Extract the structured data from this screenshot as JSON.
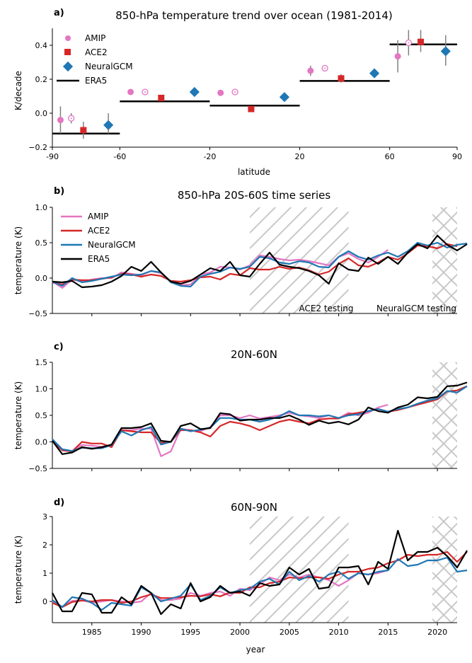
{
  "colors": {
    "amip": "#e377c2",
    "ace2": "#d62728",
    "neuralgcm": "#1f77b4",
    "era5": "#000000",
    "errorbar": "#808080",
    "hatch": "#c8c8c8"
  },
  "chart_data": [
    {
      "type": "scatter",
      "panel_label": "a)",
      "title": "850-hPa temperature trend over ocean (1981-2014)",
      "xlabel": "latitude",
      "ylabel": "K/decade",
      "xlim": [
        -90,
        90
      ],
      "ylim": [
        -0.2,
        0.5
      ],
      "xticks": [
        -90,
        -60,
        -20,
        20,
        60,
        90
      ],
      "yticks": [
        -0.2,
        0.0,
        0.2,
        0.4
      ],
      "ytick_labels": [
        "−0.2",
        "0.0",
        "0.2",
        "0.4"
      ],
      "xtick_labels": [
        "-90",
        "-60",
        "-20",
        "20",
        "60",
        "90"
      ],
      "legend": [
        "AMIP",
        "ACE2",
        "NeuralGCM",
        "ERA5"
      ],
      "legend_loc": "upper-left",
      "bands": [
        {
          "lat": [
            -90,
            -60
          ],
          "era5": -0.12,
          "amip": -0.04,
          "amip_err": [
            -0.12,
            0.04
          ],
          "amip_open": -0.03,
          "amip_open_err": [
            -0.06,
            0.0
          ],
          "ace2": -0.1,
          "ace2_err": [
            -0.15,
            -0.05
          ],
          "neuralgcm": -0.07,
          "neuralgcm_err": [
            -0.12,
            0.0
          ]
        },
        {
          "lat": [
            -60,
            -20
          ],
          "era5": 0.07,
          "amip": 0.125,
          "amip_err": null,
          "amip_open": 0.125,
          "amip_open_err": null,
          "ace2": 0.09,
          "ace2_err": null,
          "neuralgcm": 0.125,
          "neuralgcm_err": null
        },
        {
          "lat": [
            -20,
            20
          ],
          "era5": 0.045,
          "amip": 0.12,
          "amip_err": null,
          "amip_open": 0.125,
          "amip_open_err": null,
          "ace2": 0.025,
          "ace2_err": null,
          "neuralgcm": 0.095,
          "neuralgcm_err": null
        },
        {
          "lat": [
            20,
            60
          ],
          "era5": 0.19,
          "amip": 0.25,
          "amip_err": [
            0.22,
            0.28
          ],
          "amip_open": 0.265,
          "amip_open_err": [
            0.25,
            0.28
          ],
          "ace2": 0.205,
          "ace2_err": [
            0.18,
            0.23
          ],
          "neuralgcm": 0.235,
          "neuralgcm_err": null
        },
        {
          "lat": [
            60,
            90
          ],
          "era5": 0.405,
          "amip": 0.335,
          "amip_err": [
            0.24,
            0.43
          ],
          "amip_open": 0.415,
          "amip_open_err": [
            0.34,
            0.49
          ],
          "ace2": 0.42,
          "ace2_err": [
            0.36,
            0.49
          ],
          "neuralgcm": 0.365,
          "neuralgcm_err": [
            0.28,
            0.46
          ]
        }
      ]
    },
    {
      "type": "line",
      "panel_label": "b)",
      "title": "850-hPa 20S-60S time series",
      "ylabel": "temperature (K)",
      "ylim": [
        -0.5,
        1.0
      ],
      "yticks": [
        -0.5,
        0.0,
        0.5,
        1.0
      ],
      "ytick_labels": [
        "−0.5",
        "0.0",
        "0.5",
        "1.0"
      ],
      "legend": [
        "AMIP",
        "ACE2",
        "NeuralGCM",
        "ERA5"
      ],
      "legend_loc": "upper-left",
      "annotations": [
        "ACE2 testing",
        "NeuralGCM testing"
      ],
      "hatch_regions": [
        [
          2001,
          2011
        ],
        [
          2019.5,
          2022
        ]
      ],
      "x_start": 1981,
      "series": [
        {
          "name": "AMIP",
          "values": [
            -0.05,
            -0.14,
            -0.02,
            -0.05,
            -0.02,
            0.0,
            0.0,
            0.08,
            0.06,
            0.04,
            0.1,
            0.07,
            -0.05,
            -0.1,
            -0.09,
            0.05,
            0.08,
            0.16,
            0.15,
            0.12,
            0.18,
            0.32,
            0.3,
            0.27,
            0.25,
            0.26,
            0.24,
            0.21,
            0.18,
            0.3,
            0.35,
            0.27,
            0.22,
            0.3,
            0.4
          ]
        },
        {
          "name": "ACE2",
          "values": [
            -0.06,
            -0.09,
            -0.02,
            -0.03,
            -0.03,
            -0.01,
            0.01,
            0.06,
            0.05,
            0.02,
            0.05,
            0.03,
            -0.04,
            -0.05,
            -0.03,
            0.01,
            0.02,
            -0.02,
            0.06,
            0.04,
            0.14,
            0.12,
            0.12,
            0.16,
            0.13,
            0.15,
            0.11,
            0.05,
            0.09,
            0.2,
            0.28,
            0.18,
            0.16,
            0.22,
            0.3,
            0.26,
            0.35,
            0.46,
            0.45,
            0.42,
            0.48,
            0.45
          ]
        },
        {
          "name": "NeuralGCM",
          "values": [
            -0.05,
            -0.11,
            0.0,
            -0.06,
            -0.04,
            -0.01,
            0.02,
            0.05,
            0.04,
            0.05,
            0.1,
            0.08,
            -0.06,
            -0.11,
            -0.12,
            0.02,
            0.06,
            0.09,
            0.15,
            0.13,
            0.16,
            0.3,
            0.28,
            0.22,
            0.2,
            0.24,
            0.22,
            0.16,
            0.15,
            0.3,
            0.38,
            0.3,
            0.26,
            0.32,
            0.36,
            0.3,
            0.38,
            0.5,
            0.46,
            0.5,
            0.43,
            0.47,
            0.49
          ]
        },
        {
          "name": "ERA5",
          "values": [
            -0.05,
            -0.06,
            -0.04,
            -0.13,
            -0.12,
            -0.1,
            -0.05,
            0.03,
            0.16,
            0.1,
            0.23,
            0.08,
            -0.05,
            -0.08,
            -0.04,
            0.05,
            0.14,
            0.1,
            0.23,
            0.04,
            0.02,
            0.2,
            0.36,
            0.19,
            0.16,
            0.14,
            0.1,
            0.04,
            -0.08,
            0.21,
            0.12,
            0.1,
            0.29,
            0.2,
            0.3,
            0.2,
            0.36,
            0.48,
            0.42,
            0.6,
            0.47,
            0.39,
            0.48
          ]
        }
      ]
    },
    {
      "type": "line",
      "panel_label": "c)",
      "title": "20N-60N",
      "ylabel": "temperature (K)",
      "ylim": [
        -0.5,
        1.5
      ],
      "yticks": [
        -0.5,
        0.0,
        0.5,
        1.0,
        1.5
      ],
      "ytick_labels": [
        "−0.5",
        "0.0",
        "0.5",
        "1.0",
        "1.5"
      ],
      "hatch_regions": [
        [
          2019.5,
          2022
        ]
      ],
      "x_start": 1981,
      "series": [
        {
          "name": "AMIP",
          "values": [
            0.05,
            -0.14,
            -0.17,
            -0.06,
            -0.07,
            -0.09,
            -0.07,
            0.22,
            0.22,
            0.25,
            0.25,
            -0.27,
            -0.18,
            0.25,
            0.22,
            0.2,
            0.28,
            0.5,
            0.5,
            0.45,
            0.5,
            0.44,
            0.47,
            0.5,
            0.55,
            0.5,
            0.48,
            0.45,
            0.5,
            0.45,
            0.55,
            0.5,
            0.55,
            0.65,
            0.7
          ]
        },
        {
          "name": "ACE2",
          "values": [
            0.02,
            -0.16,
            -0.18,
            0.0,
            -0.03,
            -0.03,
            -0.1,
            0.22,
            0.2,
            0.18,
            0.18,
            -0.02,
            0.0,
            0.22,
            0.22,
            0.18,
            0.1,
            0.3,
            0.38,
            0.35,
            0.3,
            0.22,
            0.3,
            0.38,
            0.42,
            0.38,
            0.35,
            0.42,
            0.44,
            0.44,
            0.52,
            0.55,
            0.58,
            0.62,
            0.57,
            0.6,
            0.65,
            0.7,
            0.75,
            0.8,
            0.95,
            0.97,
            1.05
          ]
        },
        {
          "name": "NeuralGCM",
          "values": [
            0.05,
            -0.14,
            -0.17,
            -0.11,
            -0.12,
            -0.12,
            -0.06,
            0.2,
            0.12,
            0.22,
            0.28,
            -0.05,
            0.0,
            0.25,
            0.2,
            0.23,
            0.27,
            0.45,
            0.45,
            0.42,
            0.42,
            0.38,
            0.42,
            0.48,
            0.58,
            0.5,
            0.5,
            0.48,
            0.5,
            0.45,
            0.5,
            0.52,
            0.58,
            0.62,
            0.57,
            0.62,
            0.65,
            0.72,
            0.78,
            0.82,
            0.96,
            0.93,
            1.05
          ]
        },
        {
          "name": "ERA5",
          "values": [
            0.02,
            -0.23,
            -0.2,
            -0.1,
            -0.13,
            -0.1,
            -0.05,
            0.26,
            0.26,
            0.28,
            0.35,
            0.02,
            0.0,
            0.3,
            0.35,
            0.24,
            0.26,
            0.54,
            0.52,
            0.4,
            0.42,
            0.42,
            0.45,
            0.45,
            0.5,
            0.42,
            0.32,
            0.4,
            0.35,
            0.38,
            0.33,
            0.42,
            0.65,
            0.58,
            0.55,
            0.65,
            0.7,
            0.84,
            0.82,
            0.85,
            1.05,
            1.06,
            1.12
          ]
        }
      ]
    },
    {
      "type": "line",
      "panel_label": "d)",
      "title": "60N-90N",
      "xlabel": "year",
      "ylabel": "temperature (K)",
      "ylim": [
        -0.75,
        3.0
      ],
      "yticks": [
        0,
        1,
        2,
        3
      ],
      "ytick_labels": [
        "0",
        "1",
        "2",
        "3"
      ],
      "xticks": [
        1985,
        1990,
        1995,
        2000,
        2005,
        2010,
        2015,
        2020
      ],
      "xtick_labels": [
        "1985",
        "1990",
        "1995",
        "2000",
        "2005",
        "2010",
        "2015",
        "2020"
      ],
      "xlim": [
        1981,
        2022
      ],
      "hatch_regions": [
        [
          2001,
          2011
        ],
        [
          2019.5,
          2022
        ]
      ],
      "x_start": 1981,
      "series": [
        {
          "name": "AMIP",
          "values": [
            0.0,
            -0.18,
            0.02,
            0.05,
            -0.05,
            0.0,
            0.05,
            0.0,
            -0.05,
            0.0,
            0.3,
            0.05,
            0.05,
            0.1,
            0.3,
            0.2,
            0.3,
            0.35,
            0.2,
            0.45,
            0.4,
            0.6,
            0.85,
            0.75,
            0.95,
            0.85,
            0.95,
            0.85,
            0.75,
            0.55,
            0.75,
            1.0,
            0.95,
            1.0,
            1.1
          ]
        },
        {
          "name": "ACE2",
          "values": [
            -0.05,
            -0.2,
            -0.02,
            0.03,
            0.0,
            0.05,
            0.05,
            -0.05,
            0.0,
            0.15,
            0.25,
            0.12,
            0.12,
            0.15,
            0.2,
            0.18,
            0.25,
            0.18,
            0.32,
            0.3,
            0.5,
            0.5,
            0.65,
            0.7,
            0.85,
            0.82,
            0.85,
            0.85,
            0.8,
            0.95,
            1.05,
            1.05,
            1.15,
            1.2,
            1.35,
            1.45,
            1.65,
            1.6,
            1.65,
            1.65,
            1.75,
            1.4,
            1.75
          ]
        },
        {
          "name": "NeuralGCM",
          "values": [
            0.05,
            -0.2,
            0.15,
            0.1,
            -0.05,
            -0.3,
            -0.05,
            -0.1,
            -0.15,
            0.5,
            0.3,
            0.0,
            0.1,
            0.2,
            0.6,
            0.05,
            0.2,
            0.5,
            0.3,
            0.4,
            0.45,
            0.7,
            0.8,
            0.6,
            1.05,
            0.75,
            0.9,
            0.7,
            0.95,
            1.05,
            0.8,
            1.0,
            0.95,
            1.05,
            1.1,
            1.5,
            1.25,
            1.3,
            1.45,
            1.45,
            1.55,
            1.05,
            1.1
          ]
        },
        {
          "name": "ERA5",
          "values": [
            0.3,
            -0.35,
            -0.35,
            0.3,
            0.25,
            -0.4,
            -0.4,
            0.15,
            -0.1,
            0.55,
            0.3,
            -0.45,
            -0.1,
            -0.25,
            0.65,
            0.0,
            0.15,
            0.55,
            0.3,
            0.35,
            0.2,
            0.65,
            0.55,
            0.6,
            1.2,
            0.95,
            1.15,
            0.45,
            0.5,
            1.2,
            1.2,
            1.25,
            0.6,
            1.4,
            1.15,
            2.5,
            1.45,
            1.75,
            1.75,
            1.9,
            1.6,
            1.2,
            1.8
          ]
        }
      ]
    }
  ]
}
